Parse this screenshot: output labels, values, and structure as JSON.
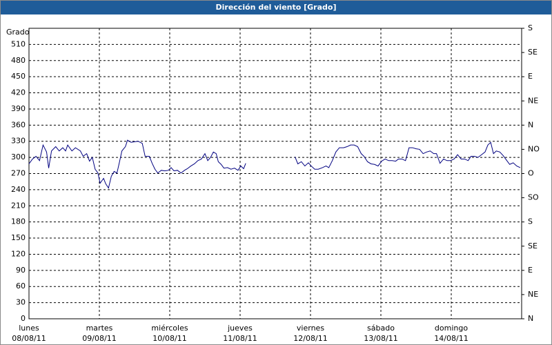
{
  "chart_data": {
    "type": "line",
    "title": "Dirección del viento [Grado]",
    "y_axis_label": "Grado",
    "x": [
      0,
      0.05,
      0.1,
      0.15,
      0.2,
      0.25,
      0.28,
      0.32,
      0.38,
      0.43,
      0.48,
      0.52,
      0.55,
      0.61,
      0.66,
      0.73,
      0.77,
      0.82,
      0.86,
      0.9,
      0.94,
      0.98,
      1.01,
      1.06,
      1.09,
      1.13,
      1.17,
      1.21,
      1.25,
      1.28,
      1.32,
      1.37,
      1.4,
      1.45,
      1.5,
      1.55,
      1.61,
      1.65,
      1.71,
      1.75,
      1.79,
      1.83,
      1.88,
      1.93,
      1.98,
      2.02,
      2.06,
      2.11,
      2.16,
      2.21,
      2.25,
      2.3,
      2.35,
      2.4,
      2.45,
      2.5,
      2.54,
      2.58,
      2.62,
      2.66,
      2.69,
      2.73,
      2.77,
      2.82,
      2.87,
      2.92,
      2.97,
      3.01,
      3.05,
      3.08,
      3.5,
      3.78,
      3.82,
      3.87,
      3.92,
      3.97,
      4.01,
      4.06,
      4.11,
      4.17,
      4.22,
      4.26,
      4.31,
      4.36,
      4.41,
      4.47,
      4.52,
      4.57,
      4.62,
      4.67,
      4.72,
      4.76,
      4.81,
      4.86,
      4.91,
      4.96,
      5.01,
      5.06,
      5.11,
      5.16,
      5.21,
      5.25,
      5.3,
      5.35,
      5.4,
      5.45,
      5.5,
      5.55,
      5.6,
      5.65,
      5.7,
      5.75,
      5.79,
      5.84,
      5.89,
      5.94,
      5.99,
      6.04,
      6.09,
      6.14,
      6.19,
      6.24,
      6.28,
      6.33,
      6.38,
      6.43,
      6.48,
      6.52,
      6.56,
      6.6,
      6.64,
      6.69,
      6.74,
      6.79,
      6.83,
      6.88,
      6.93,
      6.98
    ],
    "values": [
      288,
      297,
      302,
      294,
      323,
      310,
      280,
      312,
      320,
      312,
      318,
      312,
      323,
      312,
      318,
      312,
      302,
      307,
      293,
      300,
      278,
      271,
      252,
      261,
      251,
      243,
      265,
      274,
      271,
      288,
      312,
      320,
      332,
      328,
      329,
      330,
      326,
      302,
      302,
      289,
      278,
      271,
      276,
      275,
      276,
      281,
      275,
      276,
      271,
      276,
      279,
      284,
      288,
      294,
      297,
      307,
      294,
      300,
      310,
      307,
      292,
      287,
      280,
      281,
      278,
      280,
      276,
      284,
      279,
      289,
      null,
      301,
      288,
      292,
      284,
      290,
      284,
      278,
      278,
      281,
      284,
      281,
      294,
      310,
      318,
      318,
      320,
      323,
      323,
      320,
      307,
      302,
      292,
      288,
      287,
      284,
      293,
      297,
      294,
      294,
      293,
      297,
      297,
      294,
      318,
      318,
      316,
      315,
      307,
      310,
      312,
      307,
      307,
      289,
      297,
      294,
      294,
      297,
      305,
      297,
      297,
      294,
      302,
      302,
      300,
      305,
      310,
      323,
      328,
      307,
      312,
      310,
      303,
      294,
      287,
      290,
      284,
      281
    ],
    "color": "#000080",
    "xlim": [
      0,
      7
    ],
    "xticks": [
      {
        "value": 0,
        "label": "lunes\n08/08/11"
      },
      {
        "value": 1,
        "label": "martes\n09/08/11"
      },
      {
        "value": 2,
        "label": "miércoles\n10/08/11"
      },
      {
        "value": 3,
        "label": "jueves\n11/08/11"
      },
      {
        "value": 4,
        "label": "viernes\n12/08/11"
      },
      {
        "value": 5,
        "label": "sábado\n13/08/11"
      },
      {
        "value": 6,
        "label": "domingo\n14/08/11"
      }
    ],
    "ylim": [
      0,
      540
    ],
    "yticks": [
      0,
      30,
      60,
      90,
      120,
      150,
      180,
      210,
      240,
      270,
      300,
      330,
      360,
      390,
      420,
      450,
      480,
      510
    ],
    "y2lim": [
      0,
      540
    ],
    "y2ticks": [
      {
        "value": 540,
        "label": "S"
      },
      {
        "value": 495,
        "label": "SE"
      },
      {
        "value": 450,
        "label": "E"
      },
      {
        "value": 405,
        "label": "NE"
      },
      {
        "value": 360,
        "label": "N"
      },
      {
        "value": 315,
        "label": "NO"
      },
      {
        "value": 270,
        "label": "O"
      },
      {
        "value": 225,
        "label": "SO"
      },
      {
        "value": 180,
        "label": "S"
      },
      {
        "value": 135,
        "label": "SE"
      },
      {
        "value": 90,
        "label": "E"
      },
      {
        "value": 45,
        "label": "NE"
      },
      {
        "value": 0,
        "label": "N"
      }
    ],
    "grid": true
  }
}
